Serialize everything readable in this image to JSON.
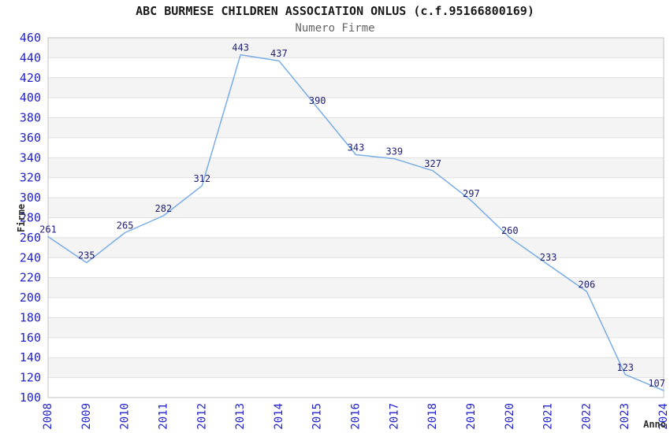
{
  "chart_data": {
    "type": "line",
    "title": "ABC BURMESE CHILDREN ASSOCIATION ONLUS (c.f.95166800169)",
    "subtitle": "Numero Firme",
    "xlabel": "Anno",
    "ylabel": "Firme",
    "categories": [
      "2008",
      "2009",
      "2010",
      "2011",
      "2012",
      "2013",
      "2014",
      "2015",
      "2016",
      "2017",
      "2018",
      "2019",
      "2020",
      "2021",
      "2022",
      "2023",
      "2024"
    ],
    "series": [
      {
        "name": "Numero Firme",
        "values": [
          261,
          235,
          265,
          282,
          312,
          443,
          437,
          390,
          343,
          339,
          327,
          297,
          260,
          233,
          206,
          123,
          107
        ]
      }
    ],
    "ylim": [
      100,
      460
    ],
    "ytick_step": 20,
    "legend": "none",
    "grid": "horizontal-bands",
    "data_labels": true,
    "colors": {
      "line": "#79ade6",
      "point_label": "#202078",
      "tick_label": "#2222cc",
      "band": "#f4f4f4",
      "grid_line": "#e0e0e0",
      "plot_border": "#c0c0c0",
      "title": "#1a1a1a",
      "subtitle": "#666666",
      "axis_title": "#2b2b2b",
      "background": "#ffffff"
    }
  }
}
